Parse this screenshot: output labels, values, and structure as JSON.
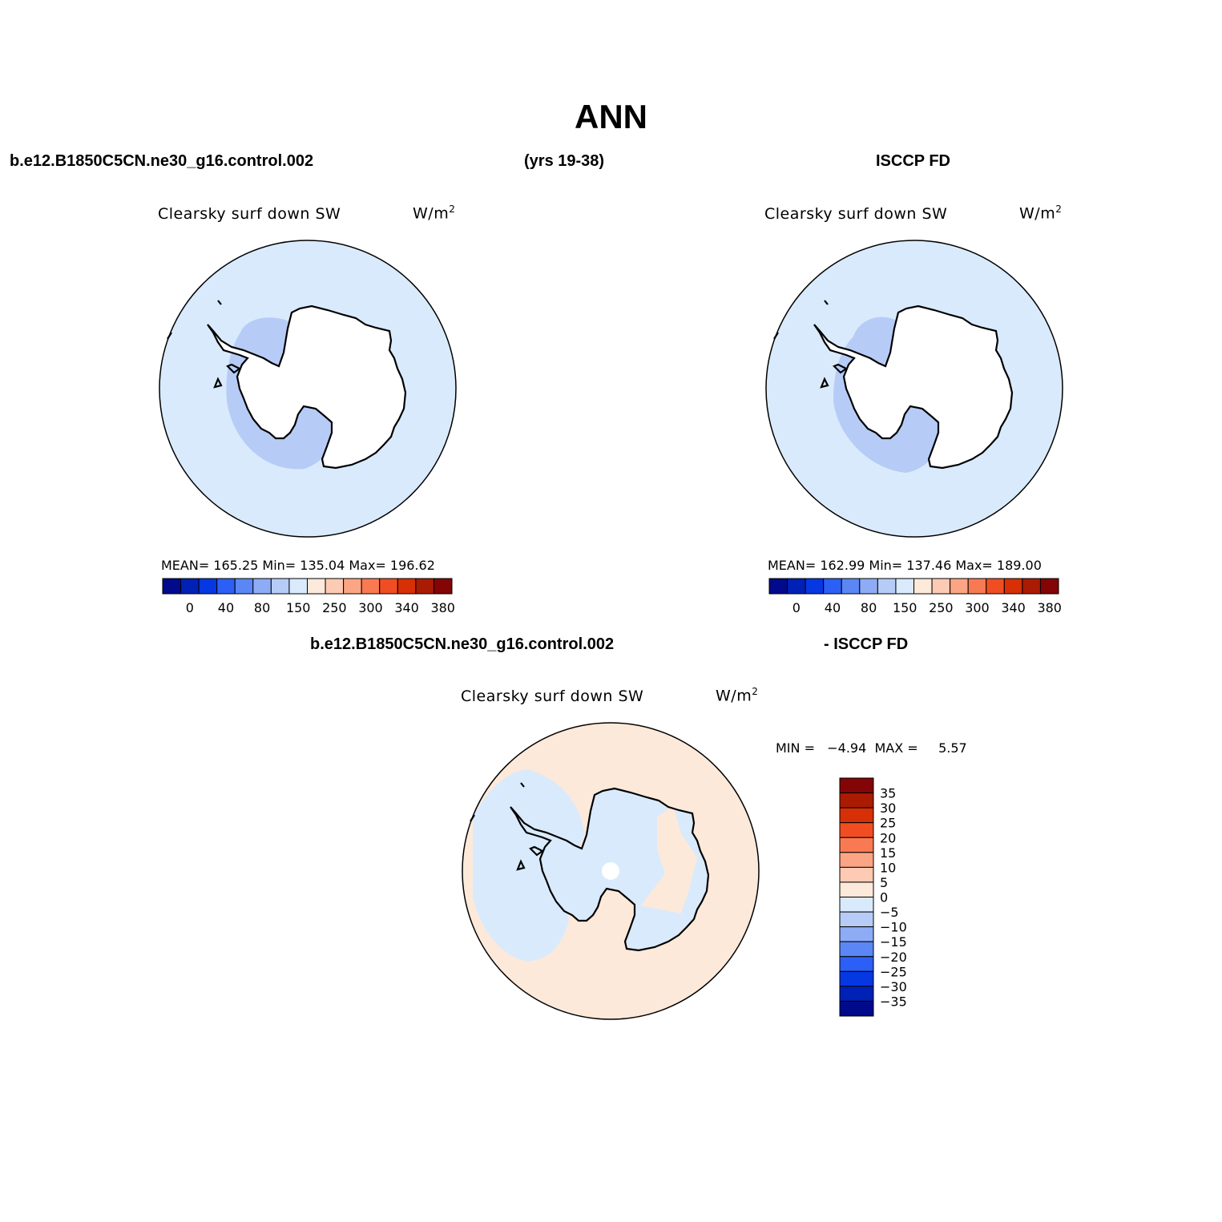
{
  "figure": {
    "title": "ANN",
    "case_label": "b.e12.B1850C5CN.ne30_g16.control.002",
    "years_label": "(yrs 19-38)",
    "obs_label": "ISCCP FD",
    "diff_case_label": "b.e12.B1850C5CN.ne30_g16.control.002",
    "diff_obs_label": "- ISCCP FD"
  },
  "panels": {
    "model": {
      "variable": "Clearsky surf down SW",
      "units_base": "W/m",
      "units_sup": "2",
      "stats": "MEAN= 165.25   Min= 135.04   Max= 196.62"
    },
    "obs": {
      "variable": "Clearsky surf down SW",
      "units_base": "W/m",
      "units_sup": "2",
      "stats": "MEAN= 162.99   Min= 137.46   Max= 189.00"
    },
    "diff": {
      "variable": "Clearsky surf down SW",
      "units_base": "W/m",
      "units_sup": "2",
      "stats": "MIN =   −4.94  MAX =     5.57"
    }
  },
  "colorbars": {
    "abs_colors": [
      "#000a8a",
      "#0021b6",
      "#0537e2",
      "#2b5ff5",
      "#5a87f5",
      "#8eacf5",
      "#b6ccf7",
      "#d9eafc",
      "#fde9d9",
      "#fdcab3",
      "#fca584",
      "#f97a52",
      "#f04e22",
      "#d72f06",
      "#aa1b04",
      "#830505"
    ],
    "abs_tick_labels": [
      "0",
      "40",
      "80",
      "150",
      "250",
      "300",
      "340",
      "380"
    ],
    "diff_colors": [
      "#000a8a",
      "#0021b6",
      "#0537e2",
      "#2b5ff5",
      "#5a87f5",
      "#8eacf5",
      "#b6ccf7",
      "#d9eafc",
      "#fde9d9",
      "#fdcab3",
      "#fca584",
      "#f97a52",
      "#f04e22",
      "#d72f06",
      "#aa1b04",
      "#830505"
    ],
    "diff_tick_labels": [
      "35",
      "30",
      "25",
      "20",
      "15",
      "10",
      "5",
      "0",
      "−5",
      "−10",
      "−15",
      "−20",
      "−25",
      "−30",
      "−35"
    ]
  },
  "maps": {
    "model": {
      "ocean_color": "#d9eafc",
      "land_color": "#ffffff",
      "band_color": "#b6ccf7",
      "pole_hole": false
    },
    "obs": {
      "ocean_color": "#d9eafc",
      "land_color": "#ffffff",
      "band_color": "#b6ccf7",
      "pole_hole": true
    },
    "diff": {
      "ocean_color": "#fde9d9",
      "land_color": "#d9eafc",
      "band_color": "#d9eafc",
      "pole_hole": true
    }
  }
}
